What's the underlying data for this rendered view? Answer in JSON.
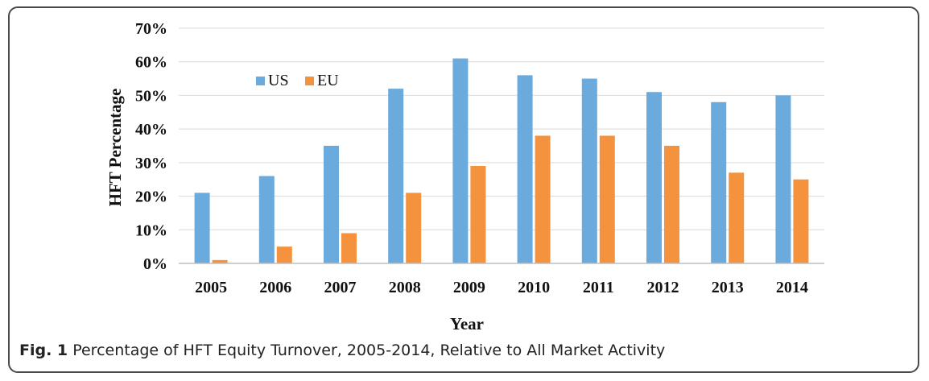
{
  "caption": {
    "label": "Fig. 1",
    "text": "Percentage of HFT Equity Turnover, 2005-2014, Relative to All Market Activity"
  },
  "colors": {
    "us": "#6aaadc",
    "eu": "#f5923e",
    "grid": "#d9d9d9",
    "axis": "#bfbfbf",
    "frame": "#4a4a4a"
  },
  "chart_data": {
    "type": "bar",
    "title": "",
    "xlabel": "Year",
    "ylabel": "HFT Percentage",
    "categories": [
      "2005",
      "2006",
      "2007",
      "2008",
      "2009",
      "2010",
      "2011",
      "2012",
      "2013",
      "2014"
    ],
    "series": [
      {
        "name": "US",
        "values": [
          21,
          26,
          35,
          52,
          61,
          56,
          55,
          51,
          48,
          50
        ]
      },
      {
        "name": "EU",
        "values": [
          1,
          5,
          9,
          21,
          29,
          38,
          38,
          35,
          27,
          25
        ]
      }
    ],
    "ylim": [
      0,
      70
    ],
    "yticks": [
      "0%",
      "10%",
      "20%",
      "30%",
      "40%",
      "50%",
      "60%",
      "70%"
    ],
    "grid": true,
    "legend_position": "top-left"
  }
}
